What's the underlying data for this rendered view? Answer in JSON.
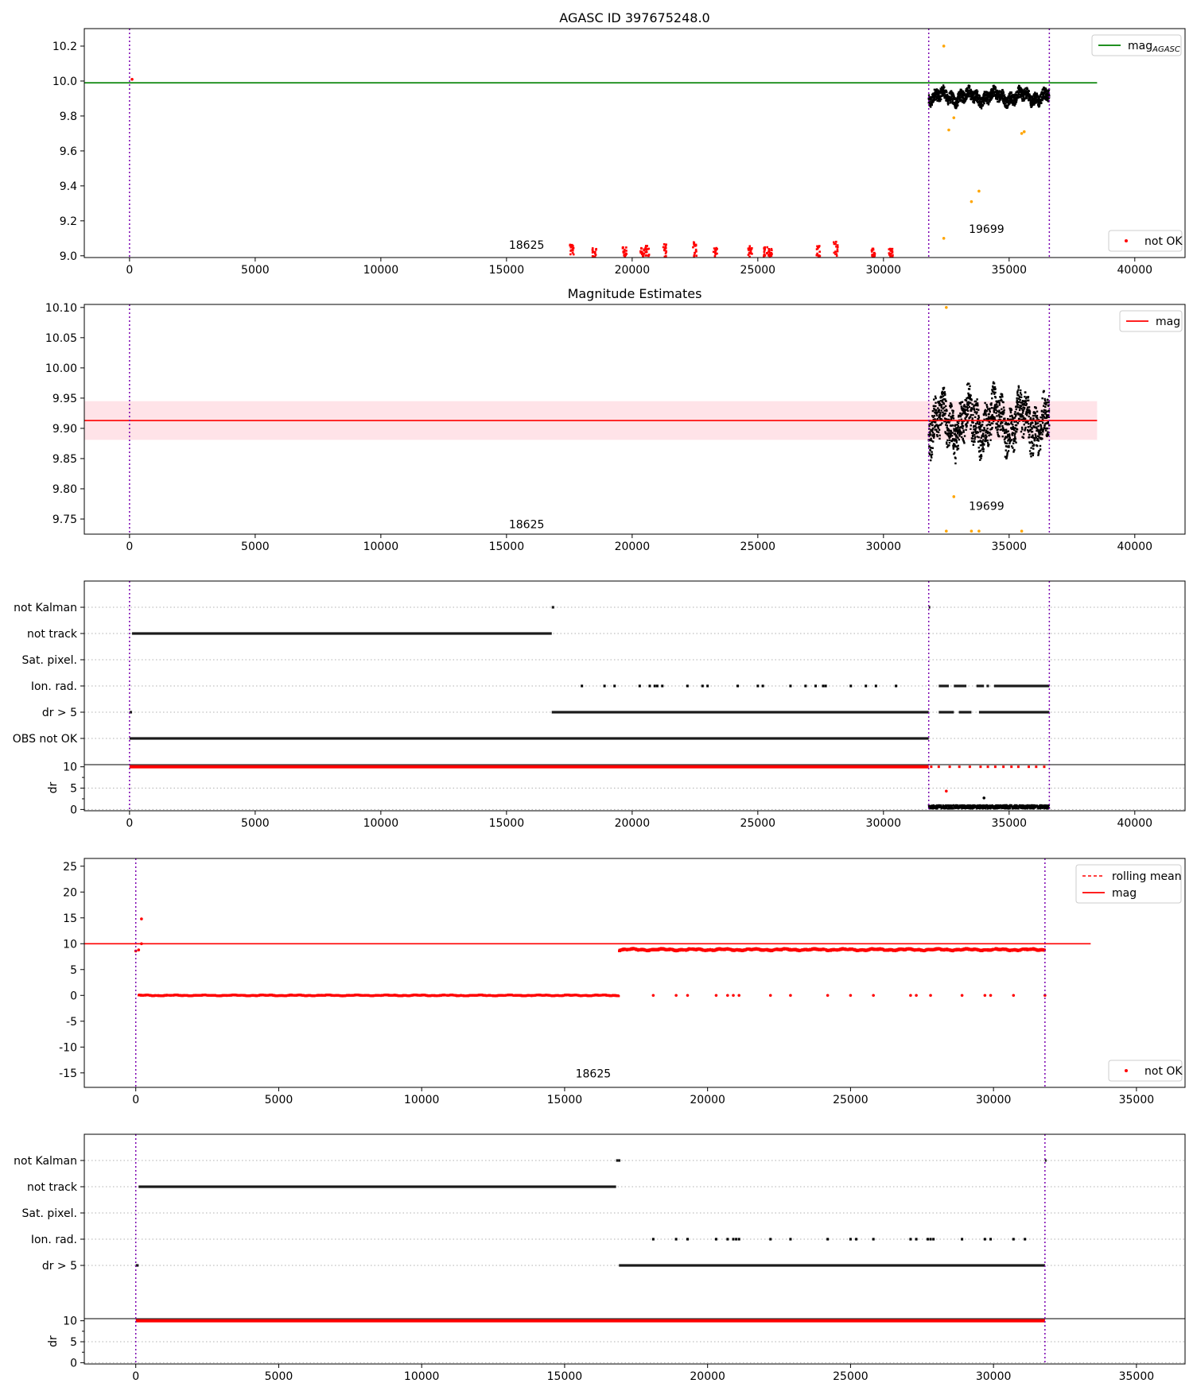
{
  "chart_data": [
    {
      "type": "scatter",
      "title": "AGASC ID 397675248.0",
      "xlim": [
        -1800,
        42000
      ],
      "ylim": [
        8.99,
        10.3
      ],
      "xticks": [
        0,
        5000,
        10000,
        15000,
        20000,
        25000,
        30000,
        35000,
        40000
      ],
      "yticks": [
        9.0,
        9.2,
        9.4,
        9.6,
        9.8,
        10.0,
        10.2
      ],
      "ytick_decimals": 1,
      "obsid_boundaries": [
        0,
        31800,
        36600
      ],
      "obsid_labels": [
        {
          "text": "18625",
          "x": 15800,
          "y": 9.04
        },
        {
          "text": "19699",
          "x": 34100,
          "y": 9.13
        }
      ],
      "hlines": [
        {
          "name": "mag_AGASC",
          "y": 9.99,
          "x_end": 38500,
          "color": "#008000"
        }
      ],
      "legend_upper": [
        "mag",
        "AGASC"
      ],
      "legend_lower": [
        "not OK"
      ],
      "series": [
        {
          "role": "ok",
          "color": "#000000",
          "segments": [
            {
              "x": [
                31800,
                36600
              ],
              "center": 9.91,
              "spread": 0.06
            }
          ]
        },
        {
          "role": "outliers",
          "color": "#ffa500",
          "points": [
            [
              32400,
              10.2
            ],
            [
              32600,
              9.72
            ],
            [
              32800,
              9.79
            ],
            [
              33500,
              9.31
            ],
            [
              33800,
              9.37
            ],
            [
              35500,
              9.7
            ],
            [
              35600,
              9.71
            ],
            [
              32400,
              9.1
            ]
          ]
        },
        {
          "name": "not OK",
          "role": "notok",
          "color": "#ff0000",
          "points": [
            [
              100,
              10.01
            ]
          ],
          "bursts": [
            17600,
            18500,
            19700,
            20400,
            20600,
            21300,
            22500,
            23300,
            24700,
            25300,
            25500,
            27400,
            28100,
            29600,
            30300
          ]
        }
      ]
    },
    {
      "type": "scatter",
      "title": "Magnitude Estimates",
      "xlim": [
        -1800,
        42000
      ],
      "ylim": [
        9.725,
        10.105
      ],
      "xticks": [
        0,
        5000,
        10000,
        15000,
        20000,
        25000,
        30000,
        35000,
        40000
      ],
      "yticks": [
        9.75,
        9.8,
        9.85,
        9.9,
        9.95,
        10.0,
        10.05,
        10.1
      ],
      "ytick_decimals": 2,
      "obsid_boundaries": [
        0,
        31800,
        36600
      ],
      "obsid_labels": [
        {
          "text": "18625",
          "x": 15800,
          "y": 9.735
        },
        {
          "text": "19699",
          "x": 34100,
          "y": 9.765
        }
      ],
      "hlines": [
        {
          "name": "mag",
          "y": 9.913,
          "x_end": 38500,
          "color": "#ff0000"
        }
      ],
      "band": {
        "y": [
          9.881,
          9.945
        ],
        "x_end": 38500,
        "color": "#ffc0cb"
      },
      "legend_upper": [
        "mag"
      ],
      "series": [
        {
          "role": "ok",
          "color": "#000000",
          "segments": [
            {
              "x": [
                31800,
                36600
              ],
              "center": 9.91,
              "spread": 0.06
            }
          ]
        },
        {
          "role": "outliers",
          "color": "#ffa500",
          "points": [
            [
              32500,
              10.1
            ],
            [
              32800,
              9.787
            ],
            [
              32500,
              9.73
            ],
            [
              33500,
              9.73
            ],
            [
              33800,
              9.73
            ],
            [
              35500,
              9.73
            ]
          ]
        }
      ]
    },
    {
      "type": "flags",
      "xlim": [
        -1800,
        42000
      ],
      "xticks": [
        0,
        5000,
        10000,
        15000,
        20000,
        25000,
        30000,
        35000,
        40000
      ],
      "obsid_boundaries": [
        0,
        31800,
        36600
      ],
      "flag_labels": [
        "not Kalman",
        "not track",
        "Sat. pixel.",
        "Ion. rad.",
        "dr > 5",
        "OBS not OK"
      ],
      "flags": {
        "not Kalman": [
          [
            16800,
            16900
          ],
          [
            31800,
            31810
          ]
        ],
        "not track": [
          [
            100,
            16800
          ]
        ],
        "Ion. rad.": [
          [
            18000
          ],
          [
            18900
          ],
          [
            19300
          ],
          [
            20300
          ],
          [
            20700
          ],
          [
            20900
          ],
          [
            21000
          ],
          [
            21200
          ],
          [
            22200
          ],
          [
            22800
          ],
          [
            23000
          ],
          [
            24200
          ],
          [
            25000
          ],
          [
            25200
          ],
          [
            26300
          ],
          [
            26900
          ],
          [
            27300
          ],
          [
            27600
          ],
          [
            27700
          ],
          [
            28700
          ],
          [
            29300
          ],
          [
            29700
          ],
          [
            30500
          ],
          [
            32200,
            32600
          ],
          [
            32800,
            33300
          ],
          [
            33700,
            34000
          ],
          [
            34100,
            34200
          ],
          [
            34400,
            36600
          ]
        ],
        "dr > 5": [
          [
            0,
            100
          ],
          [
            16800,
            31800
          ],
          [
            32200,
            32800
          ],
          [
            33000,
            33500
          ],
          [
            33800,
            36600
          ]
        ],
        "OBS not OK": [
          [
            0,
            31800
          ]
        ]
      },
      "dr": {
        "yticks": [
          0,
          5,
          10
        ],
        "ylim": [
          -0.3,
          10.5
        ],
        "ylabel": "dr",
        "limit_color": "#ff0000",
        "notok_x": [
          0,
          31800
        ],
        "ok_x": [
          31800,
          36600
        ],
        "ok_level": 0.6,
        "extras": [
          [
            32500,
            4.3
          ],
          [
            34000,
            2.7
          ]
        ]
      }
    },
    {
      "type": "scatter",
      "xlim": [
        -1800,
        36700
      ],
      "ylim": [
        -17.8,
        26.5
      ],
      "xticks": [
        0,
        5000,
        10000,
        15000,
        20000,
        25000,
        30000,
        35000
      ],
      "yticks": [
        -15,
        -10,
        -5,
        0,
        5,
        10,
        15,
        20,
        25
      ],
      "ytick_decimals": 0,
      "obsid_boundaries": [
        0,
        31800
      ],
      "obsid_labels": [
        {
          "text": "18625",
          "x": 16000,
          "y": -15.9
        }
      ],
      "hlines": [
        {
          "name": "mag",
          "y": 10.0,
          "x_end": 33400,
          "color": "#ff0000"
        }
      ],
      "legend_upper": [
        "rolling mean",
        "mag"
      ],
      "legend_lower": [
        "not OK"
      ],
      "series": [
        {
          "name": "not OK",
          "role": "notok",
          "color": "#ff0000",
          "segments": [
            {
              "x": [
                100,
                16900
              ],
              "center": 0.0,
              "spread": 0.15
            },
            {
              "x": [
                16900,
                31800
              ],
              "center": 8.85,
              "spread": 0.3
            }
          ],
          "points": [
            [
              0,
              8.6
            ],
            [
              100,
              8.8
            ],
            [
              200,
              14.8
            ],
            [
              200,
              10.0
            ],
            [
              18100,
              0
            ],
            [
              18900,
              0
            ],
            [
              19300,
              0
            ],
            [
              20300,
              0
            ],
            [
              20700,
              0
            ],
            [
              20900,
              0
            ],
            [
              21100,
              0
            ],
            [
              22200,
              0
            ],
            [
              22900,
              0
            ],
            [
              24200,
              0
            ],
            [
              25000,
              0
            ],
            [
              25800,
              0
            ],
            [
              27100,
              0
            ],
            [
              27300,
              0
            ],
            [
              27800,
              0
            ],
            [
              28900,
              0
            ],
            [
              29700,
              0
            ],
            [
              29900,
              0
            ],
            [
              30700,
              0
            ],
            [
              31800,
              0
            ]
          ]
        }
      ]
    },
    {
      "type": "flags",
      "xlim": [
        -1800,
        36700
      ],
      "xticks": [
        0,
        5000,
        10000,
        15000,
        20000,
        25000,
        30000,
        35000
      ],
      "obsid_boundaries": [
        0,
        31800
      ],
      "flag_labels": [
        "not Kalman",
        "not track",
        "Sat. pixel.",
        "Ion. rad.",
        "dr > 5"
      ],
      "flags": {
        "not Kalman": [
          [
            16800,
            16950
          ],
          [
            31800,
            31810
          ]
        ],
        "not track": [
          [
            100,
            16800
          ]
        ],
        "Ion. rad.": [
          [
            18100
          ],
          [
            18900
          ],
          [
            19300
          ],
          [
            20300
          ],
          [
            20700
          ],
          [
            20900
          ],
          [
            21000
          ],
          [
            21100
          ],
          [
            22200
          ],
          [
            22900
          ],
          [
            24200
          ],
          [
            25000
          ],
          [
            25200
          ],
          [
            25800
          ],
          [
            27100
          ],
          [
            27300
          ],
          [
            27700
          ],
          [
            27800
          ],
          [
            27900
          ],
          [
            28900
          ],
          [
            29700
          ],
          [
            29900
          ],
          [
            30700
          ],
          [
            31100
          ]
        ],
        "dr > 5": [
          [
            0,
            100
          ],
          [
            16900,
            31800
          ]
        ]
      },
      "dr": {
        "yticks": [
          0,
          5,
          10
        ],
        "ylim": [
          -0.3,
          10.5
        ],
        "ylabel": "dr",
        "limit_color": "#ff0000",
        "notok_x": [
          0,
          31800
        ],
        "ok_x": null,
        "ok_level": 0,
        "extras": []
      }
    }
  ]
}
